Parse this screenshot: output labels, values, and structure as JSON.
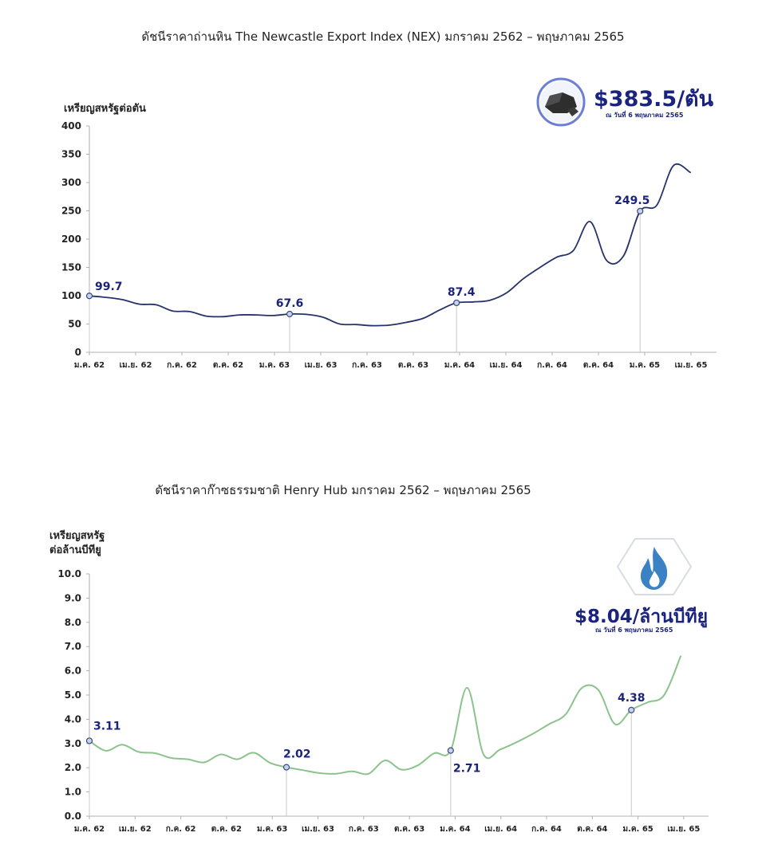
{
  "chart_data": [
    {
      "type": "line",
      "title": "ดัชนีราคาถ่านหิน The Newcastle Export Index (NEX) มกราคม 2562 – พฤษภาคม 2565",
      "ylabel": "เหรียญสหรัฐต่อตัน",
      "xlabel": "",
      "ylim": [
        0,
        400
      ],
      "yticks": [
        "0",
        "50",
        "100",
        "150",
        "200",
        "250",
        "300",
        "350",
        "400"
      ],
      "x_tick_labels": [
        "ม.ค. 62",
        "เม.ย. 62",
        "ก.ค. 62",
        "ต.ค. 62",
        "ม.ค. 63",
        "เม.ย. 63",
        "ก.ค. 63",
        "ต.ค. 63",
        "ม.ค. 64",
        "เม.ย. 64",
        "ก.ค. 64",
        "ต.ค. 64",
        "ม.ค. 65",
        "เม.ย. 65"
      ],
      "line_color": "#26336b",
      "series": [
        {
          "values": [
            99.7,
            97,
            93,
            85,
            84,
            73,
            72,
            64,
            63,
            66,
            66,
            65,
            67.6,
            67,
            62,
            50,
            49,
            47,
            48,
            53,
            60,
            75,
            87.4,
            89,
            92,
            105,
            130,
            150,
            168,
            180,
            231,
            162,
            170,
            249.5,
            260,
            330,
            318
          ]
        }
      ],
      "markers": [
        {
          "index": 0,
          "label": "99.7"
        },
        {
          "index": 12,
          "label": "67.6"
        },
        {
          "index": 22,
          "label": "87.4"
        },
        {
          "index": 33,
          "label": "249.5"
        }
      ],
      "badge": {
        "icon": "coal-icon",
        "price": "$383.5/ตัน",
        "date": "ณ วันที่ 6 พฤษภาคม 2565"
      }
    },
    {
      "type": "line",
      "title": "ดัชนีราคาก๊าซธรรมชาติ Henry Hub มกราคม 2562 – พฤษภาคม 2565",
      "ylabel_lines": [
        "เหรียญสหรัฐ",
        "ต่อล้านบีทียู"
      ],
      "xlabel": "",
      "ylim": [
        0,
        10
      ],
      "yticks": [
        "0.0",
        "1.0",
        "2.0",
        "3.0",
        "4.0",
        "5.0",
        "6.0",
        "7.0",
        "8.0",
        "9.0",
        "10.0"
      ],
      "x_tick_labels": [
        "ม.ค. 62",
        "เม.ย. 62",
        "ก.ค. 62",
        "ต.ค. 62",
        "ม.ค. 63",
        "เม.ย. 63",
        "ก.ค. 63",
        "ต.ค. 63",
        "ม.ค. 64",
        "เม.ย. 64",
        "ก.ค. 64",
        "ต.ค. 64",
        "ม.ค. 65",
        "เม.ย. 65"
      ],
      "line_color": "#8cc38c",
      "series": [
        {
          "values": [
            3.11,
            2.7,
            2.95,
            2.65,
            2.6,
            2.4,
            2.35,
            2.22,
            2.55,
            2.35,
            2.62,
            2.2,
            2.02,
            1.9,
            1.78,
            1.75,
            1.85,
            1.75,
            2.3,
            1.92,
            2.1,
            2.6,
            2.71,
            5.3,
            2.55,
            2.75,
            3.05,
            3.4,
            3.8,
            4.2,
            5.3,
            5.2,
            3.8,
            4.38,
            4.7,
            5.0,
            6.6
          ]
        }
      ],
      "markers": [
        {
          "index": 0,
          "label": "3.11"
        },
        {
          "index": 12,
          "label": "2.02"
        },
        {
          "index": 22,
          "label": "2.71"
        },
        {
          "index": 33,
          "label": "4.38"
        }
      ],
      "badge": {
        "icon": "flame-icon",
        "price": "$8.04/ล้านบีทียู",
        "date": "ณ วันที่ 6 พฤษภาคม 2565"
      }
    }
  ]
}
